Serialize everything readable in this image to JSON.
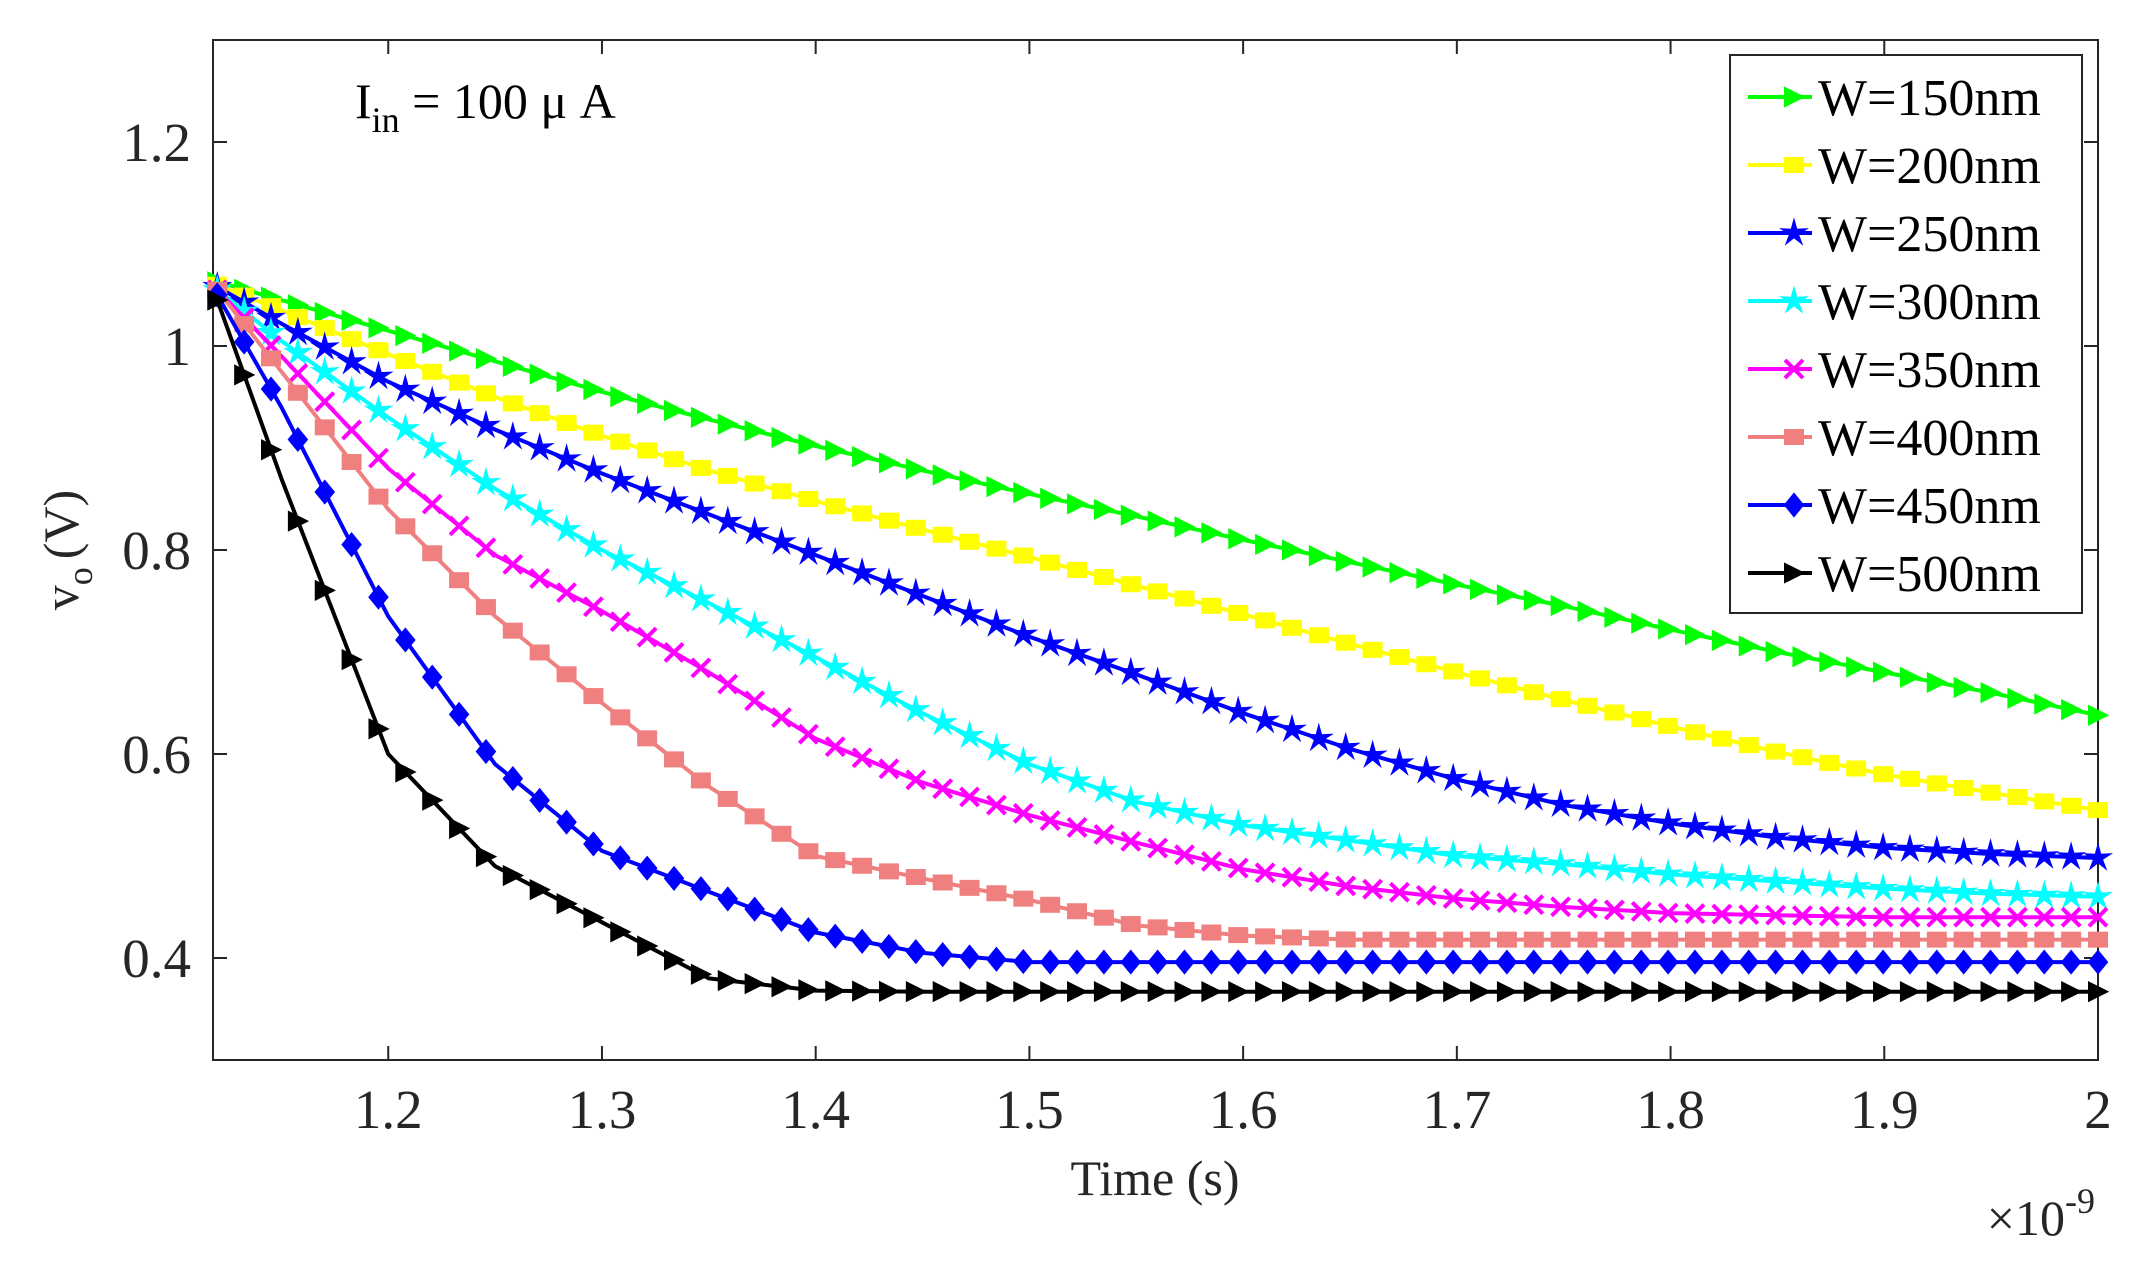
{
  "chart_data": {
    "type": "line",
    "title": "",
    "xlabel": "Time (s)",
    "ylabel_main": "v",
    "ylabel_sub": "o",
    "ylabel_unit": "(V)",
    "x_multiplier": {
      "prefix": "×10",
      "exponent": "-9"
    },
    "annotation": {
      "main": "I",
      "sub": "in",
      "rest": " = 100 μ A"
    },
    "xlim": [
      1.118,
      2.0
    ],
    "ylim": [
      0.3,
      1.3
    ],
    "xticks": [
      1.2,
      1.3,
      1.4,
      1.5,
      1.6,
      1.7,
      1.8,
      1.9,
      2.0
    ],
    "xtick_labels": [
      "1.2",
      "1.3",
      "1.4",
      "1.5",
      "1.6",
      "1.7",
      "1.8",
      "1.9",
      "2"
    ],
    "yticks": [
      0.4,
      0.6,
      0.8,
      1.0,
      1.2
    ],
    "ytick_labels": [
      "0.4",
      "0.6",
      "0.8",
      "1",
      "1.2"
    ],
    "legend_position": "top-right",
    "series": [
      {
        "name": "W=150nm",
        "color": "#00ff00",
        "marker": "triangle-right",
        "x": [
          1.12,
          1.15,
          1.2,
          1.25,
          1.3,
          1.35,
          1.4,
          1.45,
          1.5,
          1.55,
          1.6,
          1.65,
          1.7,
          1.75,
          1.8,
          1.85,
          1.9,
          1.95,
          2.0
        ],
        "y": [
          1.063,
          1.045,
          1.015,
          0.985,
          0.955,
          0.928,
          0.902,
          0.878,
          0.855,
          0.833,
          0.81,
          0.788,
          0.766,
          0.745,
          0.722,
          0.7,
          0.68,
          0.66,
          0.638
        ]
      },
      {
        "name": "W=200nm",
        "color": "#ffff00",
        "marker": "square",
        "x": [
          1.12,
          1.15,
          1.2,
          1.25,
          1.3,
          1.35,
          1.4,
          1.45,
          1.5,
          1.55,
          1.6,
          1.65,
          1.7,
          1.75,
          1.8,
          1.85,
          1.9,
          1.95,
          2.0
        ],
        "y": [
          1.06,
          1.035,
          0.992,
          0.95,
          0.912,
          0.878,
          0.848,
          0.82,
          0.793,
          0.765,
          0.737,
          0.708,
          0.68,
          0.653,
          0.627,
          0.602,
          0.58,
          0.562,
          0.545
        ]
      },
      {
        "name": "W=250nm",
        "color": "#0000ff",
        "marker": "star",
        "x": [
          1.12,
          1.15,
          1.2,
          1.25,
          1.3,
          1.35,
          1.4,
          1.45,
          1.5,
          1.55,
          1.6,
          1.65,
          1.7,
          1.75,
          1.8,
          1.85,
          1.9,
          1.95,
          2.0
        ],
        "y": [
          1.058,
          1.022,
          0.965,
          0.918,
          0.875,
          0.835,
          0.795,
          0.755,
          0.715,
          0.678,
          0.64,
          0.605,
          0.575,
          0.55,
          0.532,
          0.518,
          0.508,
          0.502,
          0.498
        ]
      },
      {
        "name": "W=300nm",
        "color": "#00ffff",
        "marker": "star",
        "x": [
          1.12,
          1.15,
          1.2,
          1.25,
          1.3,
          1.35,
          1.4,
          1.45,
          1.5,
          1.55,
          1.6,
          1.65,
          1.7,
          1.75,
          1.8,
          1.85,
          1.9,
          1.95,
          2.0
        ],
        "y": [
          1.055,
          1.005,
          0.93,
          0.86,
          0.8,
          0.748,
          0.695,
          0.64,
          0.59,
          0.553,
          0.53,
          0.515,
          0.5,
          0.492,
          0.482,
          0.475,
          0.468,
          0.463,
          0.46
        ]
      },
      {
        "name": "W=350nm",
        "color": "#ff00ff",
        "marker": "x",
        "x": [
          1.12,
          1.15,
          1.2,
          1.25,
          1.3,
          1.35,
          1.4,
          1.45,
          1.5,
          1.55,
          1.6,
          1.65,
          1.7,
          1.75,
          1.8,
          1.85,
          1.9,
          1.95,
          2.0
        ],
        "y": [
          1.055,
          0.99,
          0.88,
          0.795,
          0.74,
          0.68,
          0.615,
          0.572,
          0.54,
          0.513,
          0.487,
          0.47,
          0.458,
          0.45,
          0.444,
          0.442,
          0.44,
          0.44,
          0.44
        ]
      },
      {
        "name": "W=400nm",
        "color": "#f08080",
        "marker": "square",
        "x": [
          1.12,
          1.15,
          1.2,
          1.25,
          1.3,
          1.35,
          1.4,
          1.45,
          1.5,
          1.55,
          1.6,
          1.65,
          1.7,
          1.75,
          1.8,
          1.85,
          1.9,
          1.95,
          2.0
        ],
        "y": [
          1.055,
          0.975,
          0.84,
          0.735,
          0.65,
          0.568,
          0.5,
          0.478,
          0.457,
          0.432,
          0.422,
          0.418,
          0.418,
          0.418,
          0.418,
          0.418,
          0.418,
          0.418,
          0.418
        ]
      },
      {
        "name": "W=450nm",
        "color": "#0000ff",
        "marker": "diamond",
        "x": [
          1.12,
          1.15,
          1.2,
          1.25,
          1.3,
          1.35,
          1.4,
          1.45,
          1.5,
          1.55,
          1.6,
          1.65,
          1.7,
          1.75,
          1.8,
          1.85,
          1.9,
          1.95,
          2.0
        ],
        "y": [
          1.05,
          0.94,
          0.735,
          0.59,
          0.505,
          0.465,
          0.425,
          0.405,
          0.396,
          0.396,
          0.396,
          0.396,
          0.396,
          0.396,
          0.396,
          0.396,
          0.396,
          0.396,
          0.396
        ]
      },
      {
        "name": "W=500nm",
        "color": "#000000",
        "marker": "triangle-right",
        "x": [
          1.12,
          1.15,
          1.2,
          1.25,
          1.3,
          1.35,
          1.4,
          1.45,
          1.5,
          1.55,
          1.6,
          1.65,
          1.7,
          1.75,
          1.8,
          1.85,
          1.9,
          1.95,
          2.0
        ],
        "y": [
          1.045,
          0.87,
          0.6,
          0.49,
          0.435,
          0.38,
          0.368,
          0.367,
          0.367,
          0.367,
          0.367,
          0.367,
          0.367,
          0.367,
          0.367,
          0.367,
          0.367,
          0.367,
          0.367
        ]
      }
    ]
  }
}
